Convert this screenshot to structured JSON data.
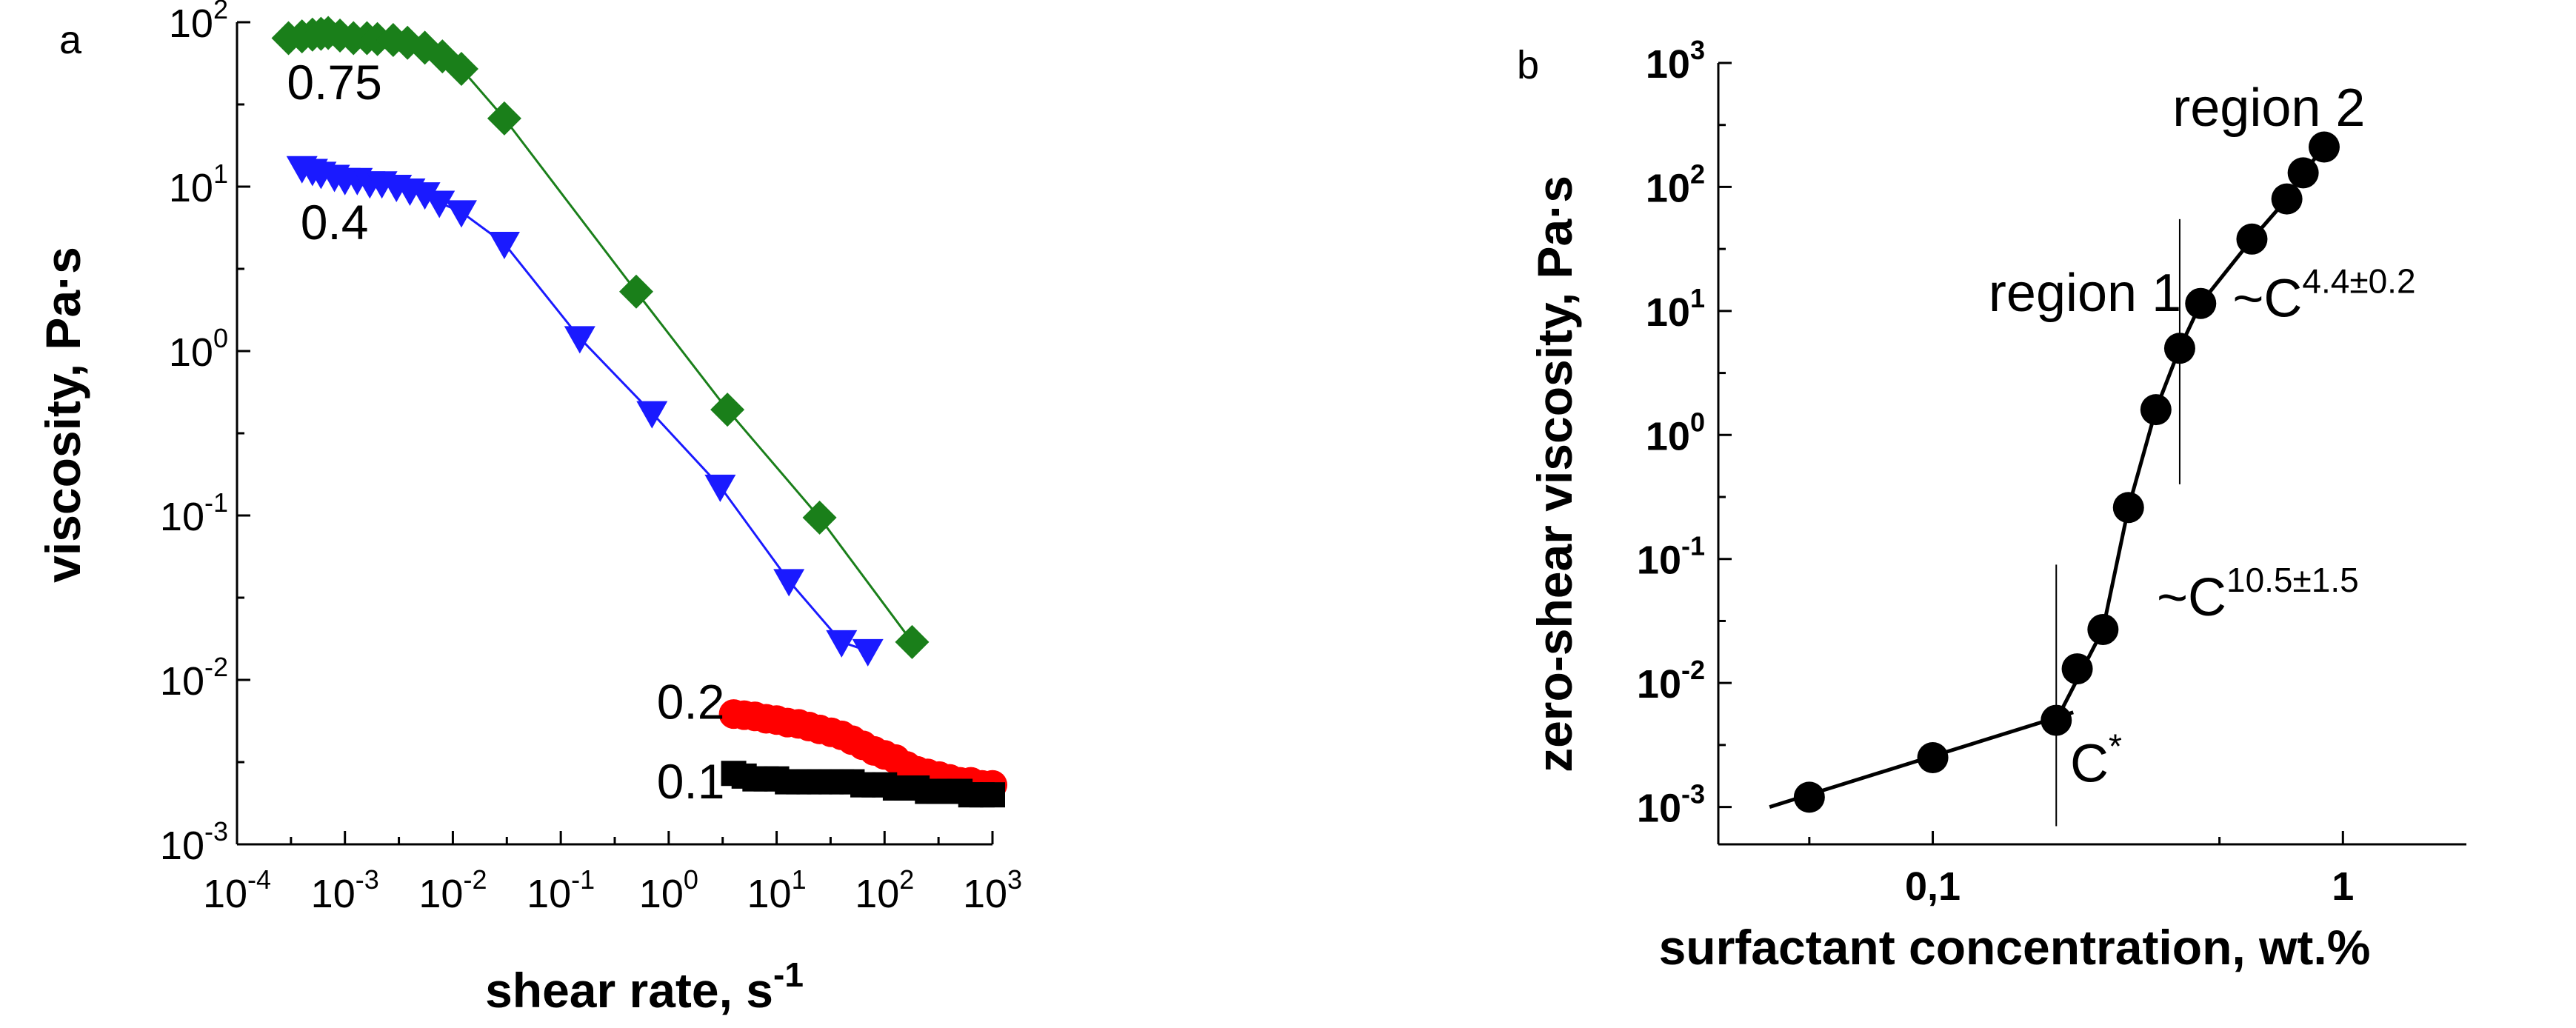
{
  "chart_data": [
    {
      "panel": "a",
      "type": "scatter",
      "x_scale": "log",
      "y_scale": "log",
      "xlabel": "shear rate, s",
      "xlabel_sup": "-1",
      "ylabel": "viscosity, Pa·s",
      "xlim": [
        0.0001,
        1000
      ],
      "ylim": [
        0.001,
        100
      ],
      "x_ticks": [
        {
          "v": 0.0001,
          "base": "10",
          "exp": "-4"
        },
        {
          "v": 0.001,
          "base": "10",
          "exp": "-3"
        },
        {
          "v": 0.01,
          "base": "10",
          "exp": "-2"
        },
        {
          "v": 0.1,
          "base": "10",
          "exp": "-1"
        },
        {
          "v": 1,
          "base": "10",
          "exp": "0"
        },
        {
          "v": 10,
          "base": "10",
          "exp": "1"
        },
        {
          "v": 100,
          "base": "10",
          "exp": "2"
        },
        {
          "v": 1000,
          "base": "10",
          "exp": "3"
        }
      ],
      "y_ticks": [
        {
          "v": 0.001,
          "base": "10",
          "exp": "-3"
        },
        {
          "v": 0.01,
          "base": "10",
          "exp": "-2"
        },
        {
          "v": 0.1,
          "base": "10",
          "exp": "-1"
        },
        {
          "v": 1,
          "base": "10",
          "exp": "0"
        },
        {
          "v": 10,
          "base": "10",
          "exp": "1"
        },
        {
          "v": 100,
          "base": "10",
          "exp": "2"
        }
      ],
      "series": [
        {
          "name": "0.75",
          "marker": "diamond",
          "color": "#1a7f1a",
          "line": true,
          "points": [
            [
              0.0003,
              80
            ],
            [
              0.0004,
              82
            ],
            [
              0.0005,
              84
            ],
            [
              0.0006,
              85
            ],
            [
              0.0007,
              86
            ],
            [
              0.0009,
              83
            ],
            [
              0.0012,
              80
            ],
            [
              0.0016,
              80
            ],
            [
              0.002,
              79
            ],
            [
              0.0028,
              78
            ],
            [
              0.0038,
              75
            ],
            [
              0.0055,
              70
            ],
            [
              0.008,
              62
            ],
            [
              0.012,
              52
            ],
            [
              0.03,
              26
            ],
            [
              0.5,
              2.3
            ],
            [
              3.5,
              0.44
            ],
            [
              25,
              0.097
            ],
            [
              180,
              0.017
            ]
          ]
        },
        {
          "name": "0.4",
          "marker": "triangle-down",
          "color": "#1a1aff",
          "line": true,
          "points": [
            [
              0.0004,
              13
            ],
            [
              0.0005,
              12.5
            ],
            [
              0.0006,
              12
            ],
            [
              0.0008,
              11.5
            ],
            [
              0.001,
              11
            ],
            [
              0.0013,
              11
            ],
            [
              0.0017,
              10.5
            ],
            [
              0.0022,
              10.5
            ],
            [
              0.003,
              10
            ],
            [
              0.004,
              9.5
            ],
            [
              0.0055,
              9
            ],
            [
              0.0075,
              8
            ],
            [
              0.012,
              7
            ],
            [
              0.03,
              4.5
            ],
            [
              0.15,
              1.2
            ],
            [
              0.7,
              0.42
            ],
            [
              3,
              0.15
            ],
            [
              13,
              0.04
            ],
            [
              40,
              0.017
            ],
            [
              70,
              0.015
            ]
          ]
        },
        {
          "name": "0.2",
          "marker": "circle",
          "color": "#ff0000",
          "line": false,
          "points": [
            [
              4,
              0.0062
            ],
            [
              5,
              0.0061
            ],
            [
              6.3,
              0.006
            ],
            [
              8,
              0.0058
            ],
            [
              10,
              0.0057
            ],
            [
              12.6,
              0.0055
            ],
            [
              16,
              0.0054
            ],
            [
              20,
              0.0052
            ],
            [
              25,
              0.005
            ],
            [
              32,
              0.0048
            ],
            [
              40,
              0.0046
            ],
            [
              50,
              0.0043
            ],
            [
              63,
              0.004
            ],
            [
              80,
              0.0037
            ],
            [
              100,
              0.0035
            ],
            [
              126,
              0.0033
            ],
            [
              160,
              0.003
            ],
            [
              200,
              0.0028
            ],
            [
              250,
              0.0027
            ],
            [
              320,
              0.0026
            ],
            [
              400,
              0.0025
            ],
            [
              500,
              0.0024
            ],
            [
              630,
              0.0024
            ],
            [
              800,
              0.0023
            ],
            [
              1000,
              0.0023
            ]
          ]
        },
        {
          "name": "0.1",
          "marker": "square",
          "color": "#000000",
          "line": false,
          "points": [
            [
              4,
              0.0027
            ],
            [
              5,
              0.0026
            ],
            [
              6.3,
              0.0025
            ],
            [
              8,
              0.0025
            ],
            [
              10,
              0.0025
            ],
            [
              12.6,
              0.0024
            ],
            [
              16,
              0.0024
            ],
            [
              20,
              0.0024
            ],
            [
              25,
              0.0024
            ],
            [
              32,
              0.0024
            ],
            [
              40,
              0.0024
            ],
            [
              50,
              0.0024
            ],
            [
              63,
              0.0023
            ],
            [
              80,
              0.0023
            ],
            [
              100,
              0.0023
            ],
            [
              126,
              0.0022
            ],
            [
              160,
              0.0022
            ],
            [
              200,
              0.0022
            ],
            [
              250,
              0.0021
            ],
            [
              320,
              0.0021
            ],
            [
              400,
              0.0021
            ],
            [
              500,
              0.0021
            ],
            [
              630,
              0.002
            ],
            [
              800,
              0.002
            ],
            [
              1000,
              0.002
            ]
          ]
        }
      ],
      "series_labels": [
        {
          "text": "0.75",
          "x": 0.0008,
          "y": 34
        },
        {
          "text": "0.4",
          "x": 0.0008,
          "y": 4.8
        },
        {
          "text": "0.2",
          "x": 1.6,
          "y": 0.0058
        },
        {
          "text": "0.1",
          "x": 1.6,
          "y": 0.0019
        }
      ]
    },
    {
      "panel": "b",
      "type": "scatter",
      "x_scale": "log",
      "y_scale": "log",
      "xlabel": "surfactant concentration, wt.%",
      "ylabel": "zero-shear viscosity, Pa·s",
      "xlim": [
        0.03,
        2
      ],
      "ylim": [
        0.0005,
        1000
      ],
      "x_ticks": [
        {
          "v": 0.1,
          "label": "0,1"
        },
        {
          "v": 1,
          "label": "1"
        }
      ],
      "y_ticks": [
        {
          "v": 0.001,
          "base": "10",
          "exp": "-3"
        },
        {
          "v": 0.01,
          "base": "10",
          "exp": "-2"
        },
        {
          "v": 0.1,
          "base": "10",
          "exp": "-1"
        },
        {
          "v": 1,
          "base": "10",
          "exp": "0"
        },
        {
          "v": 10,
          "base": "10",
          "exp": "1"
        },
        {
          "v": 100,
          "base": "10",
          "exp": "2"
        },
        {
          "v": 1000,
          "base": "10",
          "exp": "3"
        }
      ],
      "series": [
        {
          "name": "zero-shear viscosity",
          "marker": "circle",
          "color": "#000000",
          "points": [
            [
              0.05,
              0.0012
            ],
            [
              0.1,
              0.0025
            ],
            [
              0.2,
              0.005
            ],
            [
              0.225,
              0.013
            ],
            [
              0.26,
              0.027
            ],
            [
              0.3,
              0.26
            ],
            [
              0.35,
              1.6
            ],
            [
              0.4,
              5
            ],
            [
              0.45,
              11.5
            ],
            [
              0.6,
              38
            ],
            [
              0.73,
              80
            ],
            [
              0.8,
              130
            ],
            [
              0.9,
              210
            ]
          ]
        }
      ],
      "fit_lines": [
        {
          "points": [
            [
              0.04,
              0.001
            ],
            [
              0.22,
              0.0058
            ]
          ]
        },
        {
          "points": [
            [
              0.2,
              0.005
            ],
            [
              0.26,
              0.027
            ],
            [
              0.3,
              0.26
            ],
            [
              0.35,
              1.6
            ],
            [
              0.4,
              5
            ]
          ]
        },
        {
          "points": [
            [
              0.4,
              5
            ],
            [
              0.45,
              11.5
            ],
            [
              0.6,
              38
            ],
            [
              0.73,
              80
            ],
            [
              0.8,
              130
            ],
            [
              0.9,
              210
            ]
          ]
        }
      ],
      "vlines": [
        {
          "x": 0.2,
          "y_from": 0.0007,
          "y_to": 0.09
        },
        {
          "x": 0.4,
          "y_from": 0.4,
          "y_to": 55
        }
      ],
      "annotations": [
        {
          "base": "region 2",
          "x": 0.66,
          "y": 310
        },
        {
          "base": "region 1",
          "x": 0.235,
          "y": 10
        },
        {
          "base": "~C",
          "sup": "4.4±0.2",
          "x": 0.9,
          "y": 9
        },
        {
          "base": "~C",
          "sup": "10.5±1.5",
          "x": 0.62,
          "y": 0.035
        },
        {
          "base": "C",
          "sup": "*",
          "x": 0.25,
          "y": 0.0016
        }
      ]
    }
  ]
}
